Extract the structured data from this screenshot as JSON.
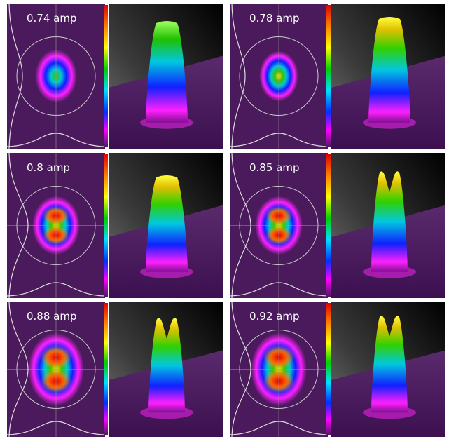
{
  "panels": [
    {
      "label": "0.74 amp"
    },
    {
      "label": "0.78 amp"
    },
    {
      "label": "0.8 amp"
    },
    {
      "label": "0.85 amp"
    },
    {
      "label": "0.88 amp"
    },
    {
      "label": "0.92 amp"
    }
  ]
}
